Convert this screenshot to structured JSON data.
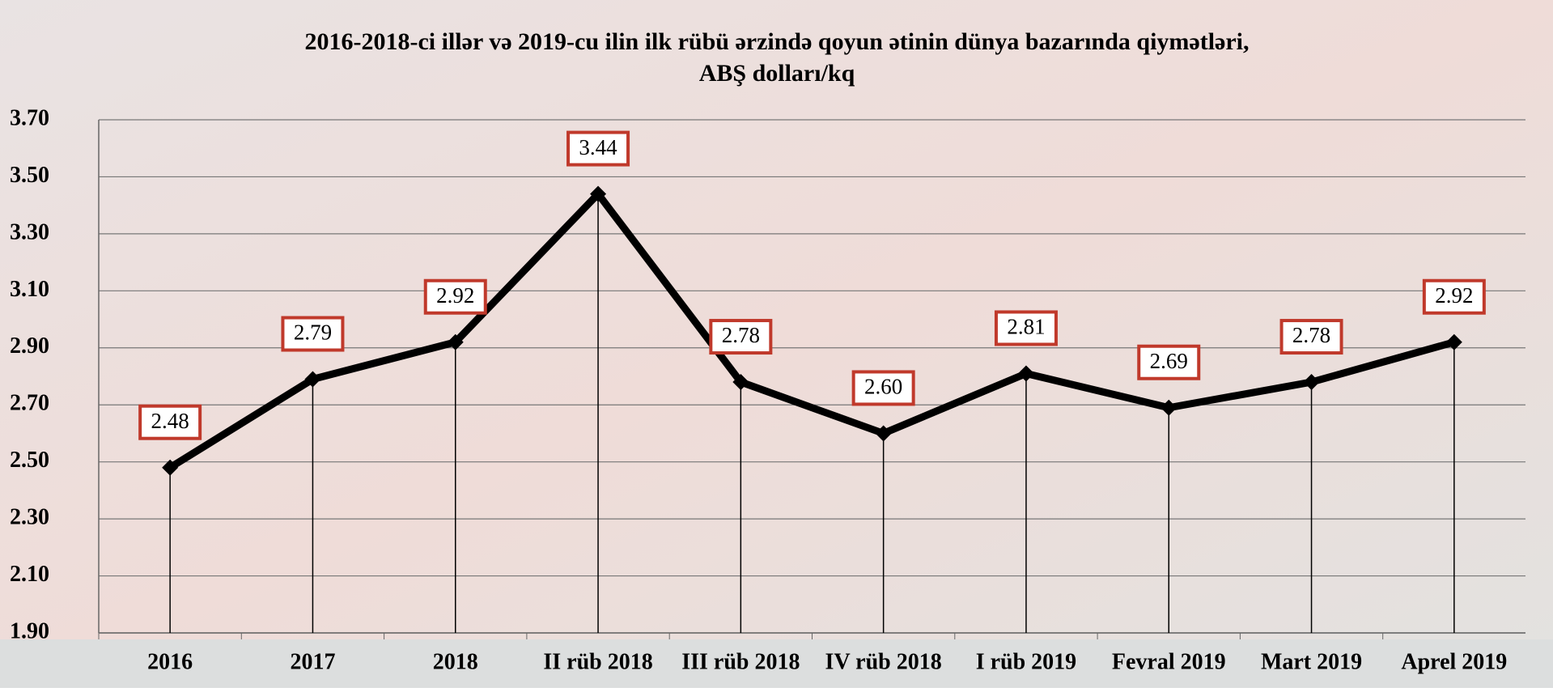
{
  "chart_data": {
    "type": "line",
    "title": [
      "2016-2018-ci illər və 2019-cu ilin ilk rübü ərzində qoyun ətinin dünya bazarında qiymətləri,",
      "ABŞ dolları/kq"
    ],
    "categories": [
      "2016",
      "2017",
      "2018",
      "II rüb 2018",
      "III rüb 2018",
      "IV rüb 2018",
      "I rüb 2019",
      "Fevral 2019",
      "Mart 2019",
      "Aprel 2019"
    ],
    "series": [
      {
        "name": "Qiymət",
        "color": "#000000",
        "values": [
          2.48,
          2.79,
          2.92,
          3.44,
          2.78,
          2.6,
          2.81,
          2.69,
          2.78,
          2.92
        ],
        "value_labels": [
          "2.48",
          "2.79",
          "2.92",
          "3.44",
          "2.78",
          "2.60",
          "2.81",
          "2.69",
          "2.78",
          "2.92"
        ]
      }
    ],
    "ylim": [
      1.9,
      3.7
    ],
    "yticks": [
      {
        "value": 1.9,
        "label": "1.90"
      },
      {
        "value": 2.1,
        "label": "2.10"
      },
      {
        "value": 2.3,
        "label": "2.30"
      },
      {
        "value": 2.5,
        "label": "2.50"
      },
      {
        "value": 2.7,
        "label": "2.70"
      },
      {
        "value": 2.9,
        "label": "2.90"
      },
      {
        "value": 3.1,
        "label": "3.10"
      },
      {
        "value": 3.3,
        "label": "3.30"
      },
      {
        "value": 3.5,
        "label": "3.50"
      },
      {
        "value": 3.7,
        "label": "3.70"
      }
    ],
    "grid": true,
    "label_border_color": "#c0392b"
  }
}
